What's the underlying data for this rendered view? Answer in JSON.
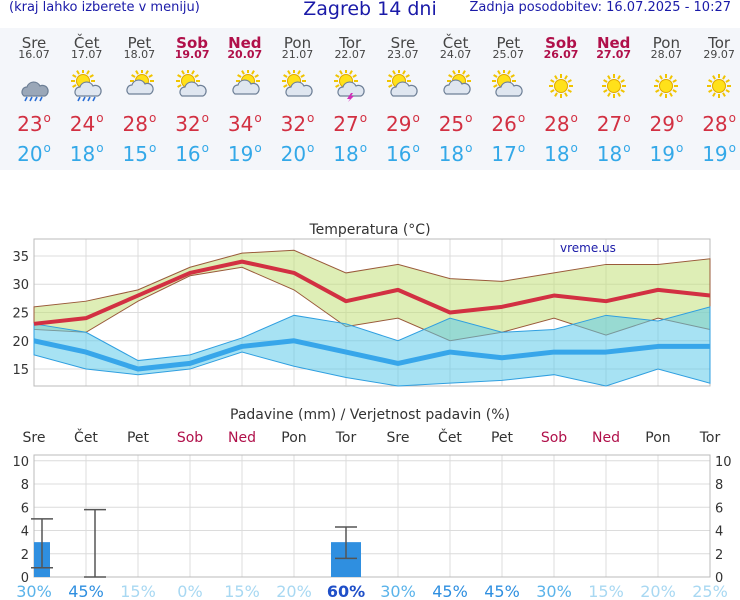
{
  "header": {
    "select_hint": "(kraj lahko izberete v meniju)",
    "title": "Zagreb 14 dni",
    "updated": "Zadnja posodobitev: 16.07.2025 - 10:27"
  },
  "days": [
    {
      "name": "Sre",
      "date": "16.07",
      "weekend": false,
      "icon": "cloud-rain-icon",
      "tmax": "23",
      "tmin": "20"
    },
    {
      "name": "Čet",
      "date": "17.07",
      "weekend": false,
      "icon": "sun-cloud-rain-icon",
      "tmax": "24",
      "tmin": "18"
    },
    {
      "name": "Pet",
      "date": "18.07",
      "weekend": false,
      "icon": "partly-cloudy-icon",
      "tmax": "28",
      "tmin": "15"
    },
    {
      "name": "Sob",
      "date": "19.07",
      "weekend": true,
      "icon": "sun-cloud-icon",
      "tmax": "32",
      "tmin": "16"
    },
    {
      "name": "Ned",
      "date": "20.07",
      "weekend": true,
      "icon": "partly-cloudy-icon",
      "tmax": "34",
      "tmin": "19"
    },
    {
      "name": "Pon",
      "date": "21.07",
      "weekend": false,
      "icon": "sun-cloud-icon",
      "tmax": "32",
      "tmin": "20"
    },
    {
      "name": "Tor",
      "date": "22.07",
      "weekend": false,
      "icon": "sun-cloud-thunder-icon",
      "tmax": "27",
      "tmin": "18"
    },
    {
      "name": "Sre",
      "date": "23.07",
      "weekend": false,
      "icon": "sun-cloud-icon",
      "tmax": "29",
      "tmin": "16"
    },
    {
      "name": "Čet",
      "date": "24.07",
      "weekend": false,
      "icon": "partly-cloudy-icon",
      "tmax": "25",
      "tmin": "18"
    },
    {
      "name": "Pet",
      "date": "25.07",
      "weekend": false,
      "icon": "sun-cloud-icon",
      "tmax": "26",
      "tmin": "17"
    },
    {
      "name": "Sob",
      "date": "26.07",
      "weekend": true,
      "icon": "sun-icon",
      "tmax": "28",
      "tmin": "18"
    },
    {
      "name": "Ned",
      "date": "27.07",
      "weekend": true,
      "icon": "sun-icon",
      "tmax": "27",
      "tmin": "18"
    },
    {
      "name": "Pon",
      "date": "28.07",
      "weekend": false,
      "icon": "sun-icon",
      "tmax": "29",
      "tmin": "19"
    },
    {
      "name": "Tor",
      "date": "29.07",
      "weekend": false,
      "icon": "sun-icon",
      "tmax": "28",
      "tmin": "19"
    }
  ],
  "deg_symbol": "o",
  "colors": {
    "max": "#d23042",
    "min": "#33a8e8",
    "weekend": "#b0104a",
    "precip": "#2f8fe0"
  },
  "chart_data": [
    {
      "type": "line",
      "title": "Temperatura (°C)",
      "watermark": "vreme.us",
      "x": [
        "Sre",
        "Čet",
        "Pet",
        "Sob",
        "Ned",
        "Pon",
        "Tor",
        "Sre",
        "Čet",
        "Pet",
        "Sob",
        "Ned",
        "Pon",
        "Tor"
      ],
      "ylim": [
        12,
        38
      ],
      "yticks": [
        15,
        20,
        25,
        30,
        35
      ],
      "series": [
        {
          "role": "max",
          "values": [
            23,
            24,
            28,
            32,
            34,
            32,
            27,
            29,
            25,
            26,
            28,
            27,
            29,
            28
          ]
        },
        {
          "role": "max-upper",
          "values": [
            26,
            27,
            29,
            33,
            35.5,
            36,
            32,
            33.5,
            31,
            30.5,
            32,
            33.5,
            33.5,
            34.5
          ]
        },
        {
          "role": "max-lower",
          "values": [
            22,
            21.5,
            27,
            31.5,
            33,
            29,
            22.5,
            24,
            20,
            21.5,
            24,
            21,
            24,
            22
          ]
        },
        {
          "role": "min",
          "values": [
            20,
            18,
            15,
            16,
            19,
            20,
            18,
            16,
            18,
            17,
            18,
            18,
            19,
            19
          ]
        },
        {
          "role": "min-upper",
          "values": [
            23,
            21.5,
            16.5,
            17.5,
            20.5,
            24.5,
            23,
            20,
            24,
            21.5,
            22,
            24.5,
            23.5,
            26
          ]
        },
        {
          "role": "min-lower",
          "values": [
            17.5,
            15,
            14,
            15,
            18,
            15.5,
            13.5,
            12,
            12.5,
            13,
            14,
            12,
            15,
            12.5
          ]
        }
      ]
    },
    {
      "type": "bar",
      "title": "Padavine (mm) / Verjetnost padavin (%)",
      "categories": [
        "Sre",
        "Čet",
        "Pet",
        "Sob",
        "Ned",
        "Pon",
        "Tor",
        "Sre",
        "Čet",
        "Pet",
        "Sob",
        "Ned",
        "Pon",
        "Tor"
      ],
      "values": [
        3,
        0,
        0,
        0,
        0,
        0,
        3,
        0,
        0,
        0,
        0,
        0,
        0,
        0
      ],
      "ranges": [
        [
          0.8,
          5
        ],
        [
          0,
          5.8
        ],
        null,
        null,
        null,
        null,
        [
          1.6,
          4.3
        ],
        null,
        null,
        null,
        null,
        null,
        null,
        null
      ],
      "probability": [
        "30%",
        "45%",
        "15%",
        "0%",
        "15%",
        "20%",
        "60%",
        "30%",
        "45%",
        "45%",
        "30%",
        "15%",
        "20%",
        "25%"
      ],
      "ylim": [
        0,
        10.5
      ],
      "yticks": [
        0,
        2,
        4,
        6,
        8,
        10
      ]
    }
  ]
}
